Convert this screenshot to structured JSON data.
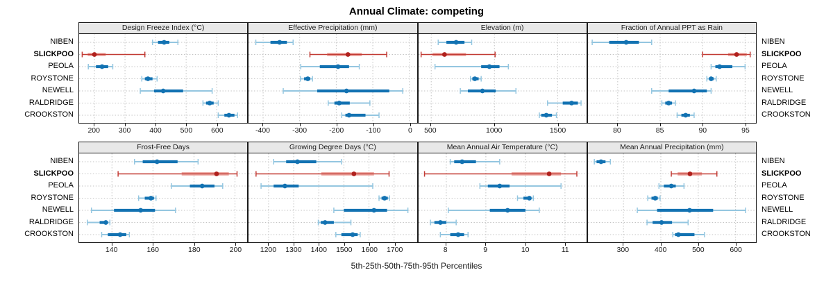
{
  "title": "Annual Climate: competing",
  "footer": "5th-25th-50th-75th-95th Percentiles",
  "stations": [
    "NIBEN",
    "SLICKPOO",
    "PEOLA",
    "ROYSTONE",
    "NEWELL",
    "RALDRIDGE",
    "CROOKSTON"
  ],
  "highlight_station": "SLICKPOO",
  "colors": {
    "blue_dark": "#1272b2",
    "blue_light": "#94c6e0",
    "red_dark": "#b0211d",
    "red_mid": "#c23b34",
    "red_light": "#f0b1ab",
    "strip_bg": "#e8e8e8",
    "grid": "#c3c3c3",
    "border": "#1a1a1a"
  },
  "chart_data": {
    "type": "dot-whisker-trellis",
    "percentiles": [
      5,
      25,
      50,
      75,
      95
    ],
    "legend_note": "dot = median, thick band = 25th-75th, thin capped line = 5th-95th",
    "panels": [
      {
        "title": "Design Freeze Index (°C)",
        "xlim": [
          150,
          700
        ],
        "ticks": [
          200,
          300,
          400,
          500,
          600
        ],
        "rows": [
          {
            "station": "NIBEN",
            "values": [
              390,
              408,
              428,
              445,
              473
            ]
          },
          {
            "station": "SLICKPOO",
            "values": [
              160,
              178,
              200,
              237,
              365
            ]
          },
          {
            "station": "PEOLA",
            "values": [
              180,
              205,
              225,
              245,
              260
            ]
          },
          {
            "station": "ROYSTONE",
            "values": [
              355,
              365,
              375,
              390,
              405
            ]
          },
          {
            "station": "NEWELL",
            "values": [
              350,
              395,
              425,
              490,
              585
            ]
          },
          {
            "station": "RALDRIDGE",
            "values": [
              555,
              565,
              577,
              590,
              605
            ]
          },
          {
            "station": "CROOKSTON",
            "values": [
              605,
              625,
              640,
              658,
              668
            ]
          }
        ]
      },
      {
        "title": "Effective Precipitation (mm)",
        "xlim": [
          -440,
          20
        ],
        "ticks": [
          -400,
          -300,
          -200,
          -100,
          0
        ],
        "rows": [
          {
            "station": "NIBEN",
            "values": [
              -420,
              -380,
              -355,
              -335,
              -318
            ]
          },
          {
            "station": "SLICKPOO",
            "values": [
              -272,
              -225,
              -168,
              -130,
              -62
            ]
          },
          {
            "station": "PEOLA",
            "values": [
              -297,
              -245,
              -195,
              -165,
              -137
            ]
          },
          {
            "station": "ROYSTONE",
            "values": [
              -298,
              -288,
              -278,
              -271,
              -265
            ]
          },
          {
            "station": "NEWELL",
            "values": [
              -345,
              -252,
              -172,
              -55,
              -18
            ]
          },
          {
            "station": "RALDRIDGE",
            "values": [
              -222,
              -205,
              -192,
              -163,
              -108
            ]
          },
          {
            "station": "CROOKSTON",
            "values": [
              -185,
              -175,
              -165,
              -120,
              -83
            ]
          }
        ]
      },
      {
        "title": "Elevation (m)",
        "xlim": [
          400,
          1730
        ],
        "ticks": [
          500,
          1000,
          1500
        ],
        "rows": [
          {
            "station": "NIBEN",
            "values": [
              555,
              620,
              697,
              763,
              820
            ]
          },
          {
            "station": "SLICKPOO",
            "values": [
              420,
              510,
              605,
              775,
              1005
            ]
          },
          {
            "station": "PEOLA",
            "values": [
              530,
              895,
              960,
              1040,
              1110
            ]
          },
          {
            "station": "ROYSTONE",
            "values": [
              810,
              825,
              845,
              875,
              895
            ]
          },
          {
            "station": "NEWELL",
            "values": [
              730,
              790,
              905,
              1010,
              1170
            ]
          },
          {
            "station": "RALDRIDGE",
            "values": [
              1420,
              1540,
              1610,
              1660,
              1685
            ]
          },
          {
            "station": "CROOKSTON",
            "values": [
              1355,
              1370,
              1410,
              1455,
              1490
            ]
          }
        ]
      },
      {
        "title": "Fraction of Annual PPT as Rain",
        "xlim": [
          76.5,
          96.3
        ],
        "ticks": [
          80,
          85,
          90,
          95
        ],
        "rows": [
          {
            "station": "NIBEN",
            "values": [
              77,
              79,
              81,
              82.5,
              84
            ]
          },
          {
            "station": "SLICKPOO",
            "values": [
              90,
              93,
              94,
              95.2,
              95.6
            ]
          },
          {
            "station": "PEOLA",
            "values": [
              91,
              91.5,
              92,
              93.5,
              95
            ]
          },
          {
            "station": "ROYSTONE",
            "values": [
              90.5,
              90.8,
              91,
              91.3,
              91.6
            ]
          },
          {
            "station": "NEWELL",
            "values": [
              84,
              86,
              89,
              90.5,
              91
            ]
          },
          {
            "station": "RALDRIDGE",
            "values": [
              85.2,
              85.6,
              86,
              86.4,
              86.8
            ]
          },
          {
            "station": "CROOKSTON",
            "values": [
              87,
              87.5,
              88,
              88.5,
              89
            ]
          }
        ]
      },
      {
        "title": "Frost-Free Days",
        "xlim": [
          124,
          206
        ],
        "ticks": [
          140,
          160,
          180,
          200
        ],
        "rows": [
          {
            "station": "NIBEN",
            "values": [
              151,
              155,
              162,
              172,
              182
            ]
          },
          {
            "station": "SLICKPOO",
            "values": [
              143,
              174,
              191,
              197,
              201
            ]
          },
          {
            "station": "PEOLA",
            "values": [
              169,
              178,
              184,
              190,
              194
            ]
          },
          {
            "station": "ROYSTONE",
            "values": [
              153,
              156,
              159,
              160.5,
              161.5
            ]
          },
          {
            "station": "NEWELL",
            "values": [
              130,
              141,
              154,
              161,
              171
            ]
          },
          {
            "station": "RALDRIDGE",
            "values": [
              128,
              134,
              137,
              138,
              139
            ]
          },
          {
            "station": "CROOKSTON",
            "values": [
              135,
              138,
              144,
              147,
              148.5
            ]
          }
        ]
      },
      {
        "title": "Growing Degree Days (°C)",
        "xlim": [
          1120,
          1790
        ],
        "ticks": [
          1200,
          1300,
          1400,
          1500,
          1600,
          1700
        ],
        "rows": [
          {
            "station": "NIBEN",
            "values": [
              1220,
              1270,
              1315,
              1390,
              1490
            ]
          },
          {
            "station": "SLICKPOO",
            "values": [
              1150,
              1410,
              1540,
              1620,
              1680
            ]
          },
          {
            "station": "PEOLA",
            "values": [
              1170,
              1220,
              1265,
              1320,
              1615
            ]
          },
          {
            "station": "ROYSTONE",
            "values": [
              1640,
              1650,
              1662,
              1675,
              1682
            ]
          },
          {
            "station": "NEWELL",
            "values": [
              1460,
              1500,
              1620,
              1672,
              1755
            ]
          },
          {
            "station": "RALDRIDGE",
            "values": [
              1398,
              1408,
              1425,
              1460,
              1528
            ]
          },
          {
            "station": "CROOKSTON",
            "values": [
              1468,
              1490,
              1535,
              1555,
              1565
            ]
          }
        ]
      },
      {
        "title": "Mean Annual Air Temperature (°C)",
        "xlim": [
          7.3,
          11.55
        ],
        "ticks": [
          8,
          9,
          10,
          11
        ],
        "rows": [
          {
            "station": "NIBEN",
            "values": [
              8.1,
              8.2,
              8.4,
              8.75,
              9.35
            ]
          },
          {
            "station": "SLICKPOO",
            "values": [
              7.45,
              9.65,
              10.6,
              10.9,
              11.3
            ]
          },
          {
            "station": "PEOLA",
            "values": [
              8.85,
              9.05,
              9.35,
              9.6,
              10.9
            ]
          },
          {
            "station": "ROYSTONE",
            "values": [
              9.8,
              9.95,
              10.1,
              10.15,
              10.2
            ]
          },
          {
            "station": "NEWELL",
            "values": [
              8.05,
              9.1,
              9.55,
              10.0,
              10.35
            ]
          },
          {
            "station": "RALDRIDGE",
            "values": [
              7.6,
              7.7,
              7.85,
              8.0,
              8.25
            ]
          },
          {
            "station": "CROOKSTON",
            "values": [
              7.85,
              8.1,
              8.3,
              8.45,
              8.55
            ]
          }
        ]
      },
      {
        "title": "Mean Annual Precipitation (mm)",
        "xlim": [
          205,
          655
        ],
        "ticks": [
          300,
          400,
          500,
          600
        ],
        "rows": [
          {
            "station": "NIBEN",
            "values": [
              222,
              228,
              240,
              252,
              265
            ]
          },
          {
            "station": "SLICKPOO",
            "values": [
              428,
              445,
              478,
              510,
              550
            ]
          },
          {
            "station": "PEOLA",
            "values": [
              395,
              408,
              428,
              440,
              462
            ]
          },
          {
            "station": "ROYSTONE",
            "values": [
              365,
              375,
              385,
              392,
              398
            ]
          },
          {
            "station": "NEWELL",
            "values": [
              337,
              390,
              477,
              540,
              627
            ]
          },
          {
            "station": "RALDRIDGE",
            "values": [
              363,
              378,
              402,
              430,
              473
            ]
          },
          {
            "station": "CROOKSTON",
            "values": [
              432,
              438,
              447,
              490,
              517
            ]
          }
        ]
      }
    ]
  }
}
